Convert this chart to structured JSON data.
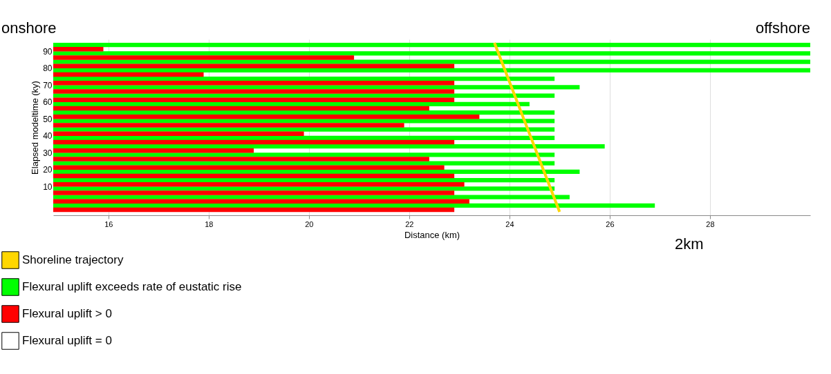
{
  "chart_data": {
    "type": "bar",
    "orientation": "horizontal",
    "xlabel": "Distance (km)",
    "ylabel": "Elapsed modeltime (ky)",
    "x": [
      -2.5,
      2.5,
      7.5,
      12.5,
      17.5,
      22.5,
      27.5,
      32.5,
      37.5,
      42.5,
      47.5,
      52.5,
      57.5,
      62.5,
      67.5,
      72.5,
      77.5,
      82.5,
      87.5,
      92.5
    ],
    "series": [
      {
        "name": "Flexural uplift exceeds rate of eustatic rise",
        "color": "#00ff00",
        "values": [
          26.9,
          25.2,
          24.9,
          24.9,
          25.4,
          24.9,
          24.9,
          25.9,
          24.9,
          24.9,
          24.9,
          24.9,
          24.4,
          24.9,
          25.4,
          24.9,
          30,
          30,
          30,
          30
        ]
      },
      {
        "name": "Flexural uplift > 0",
        "color": "#ff0000",
        "values": [
          22.9,
          23.2,
          22.9,
          23.1,
          22.9,
          22.7,
          22.4,
          18.9,
          22.9,
          19.9,
          21.9,
          23.4,
          22.4,
          22.9,
          22.9,
          22.9,
          17.9,
          22.9,
          20.9,
          15.9
        ]
      },
      {
        "name": "Flexural uplift = 0",
        "color": "#ffffff",
        "values": [
          null,
          null,
          null,
          null,
          null,
          null,
          null,
          null,
          null,
          null,
          null,
          null,
          null,
          null,
          null,
          null,
          null,
          null,
          null,
          null
        ]
      },
      {
        "name": "Shoreline trajectory",
        "type": "line",
        "color": "#ffd700",
        "x": [
          95,
          -5
        ],
        "values": [
          23.7,
          25.0
        ]
      }
    ],
    "xlim": [
      14.9,
      30
    ],
    "xticks": [
      16,
      18,
      20,
      22,
      24,
      26,
      28
    ],
    "ylim": [
      -5,
      95
    ],
    "yticks": [
      10,
      20,
      30,
      40,
      50,
      60,
      70,
      80,
      90
    ],
    "grid": "x",
    "legend": "bottom left",
    "annotations": [
      "onshore",
      "offshore",
      "2km"
    ]
  }
}
